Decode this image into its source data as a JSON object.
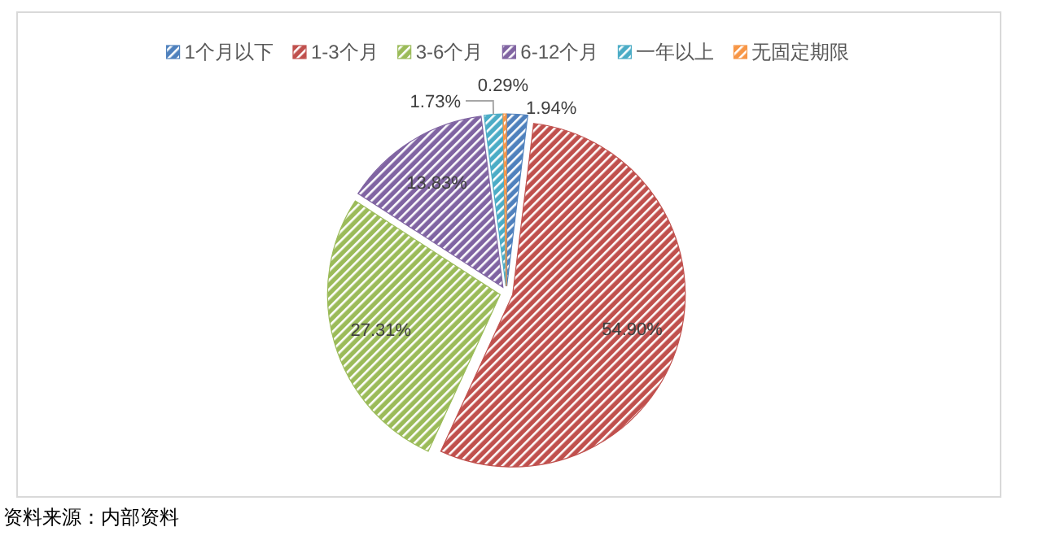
{
  "chart_data": {
    "type": "pie",
    "categories": [
      "1个月以下",
      "1-3个月",
      "3-6个月",
      "6-12个月",
      "一年以上",
      "无固定期限"
    ],
    "values": [
      1.94,
      54.9,
      27.31,
      13.83,
      1.73,
      0.29
    ],
    "value_labels": [
      "1.94%",
      "54.90%",
      "27.31%",
      "13.83%",
      "1.73%",
      "0.29%"
    ],
    "colors": [
      "#4f81bd",
      "#c0504d",
      "#9bbb59",
      "#8064a2",
      "#4bacc6",
      "#f79646"
    ],
    "legend": "top",
    "annotations": [
      "资料来源：内部资料"
    ]
  }
}
